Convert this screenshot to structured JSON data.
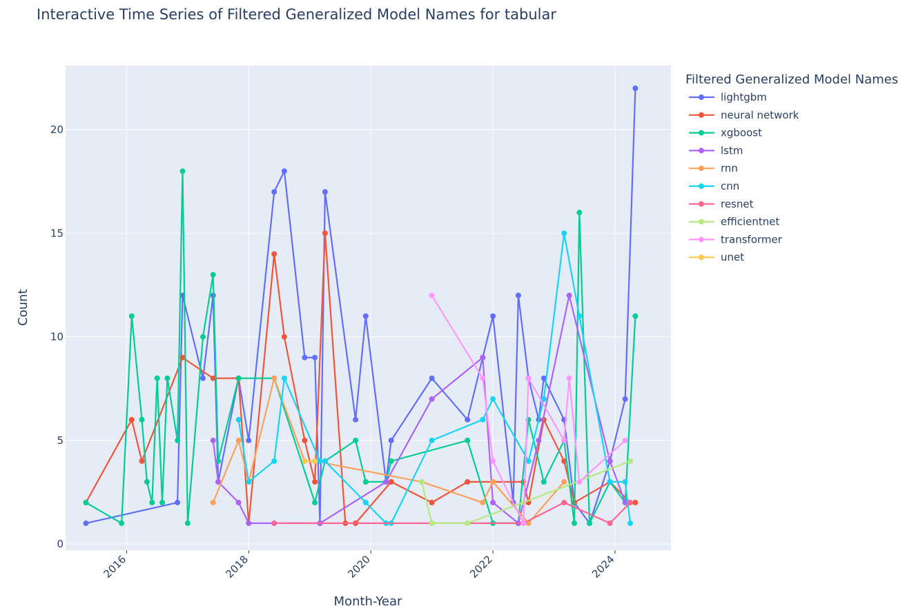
{
  "chart_data": {
    "type": "line",
    "title": "Interactive Time Series of Filtered Generalized Model Names for tabular",
    "xlabel": "Month-Year",
    "ylabel": "Count",
    "legend_title": "Filtered Generalized Model Names",
    "legend_position": "right",
    "grid": true,
    "xlim": [
      "2015-01",
      "2024-12"
    ],
    "ylim": [
      -0.3,
      23.1
    ],
    "x_ticks": [
      "2016",
      "2018",
      "2020",
      "2022",
      "2024"
    ],
    "y_ticks": [
      "0",
      "5",
      "10",
      "15",
      "20"
    ],
    "background": "#e5ecf6",
    "series": [
      {
        "name": "lightgbm",
        "color": "#636efa",
        "x": [
          "2015-05",
          "2016-11",
          "2016-12",
          "2017-04",
          "2017-06",
          "2017-07",
          "2017-11",
          "2018-01",
          "2018-06",
          "2018-08",
          "2018-12",
          "2019-02",
          "2019-03",
          "2019-04",
          "2019-10",
          "2019-12",
          "2020-04",
          "2020-05",
          "2021-01",
          "2021-08",
          "2021-11",
          "2022-01",
          "2022-05",
          "2022-06",
          "2022-08",
          "2022-10",
          "2022-11",
          "2023-03",
          "2023-05",
          "2023-08",
          "2023-12",
          "2024-03",
          "2024-05"
        ],
        "y": [
          1,
          2,
          12,
          8,
          12,
          3,
          8,
          5,
          17,
          18,
          9,
          9,
          1,
          17,
          6,
          11,
          3,
          5,
          8,
          6,
          9,
          11,
          2,
          12,
          8,
          6,
          8,
          6,
          2,
          1,
          4,
          7,
          22
        ]
      },
      {
        "name": "neural network",
        "color": "#ef553b",
        "x": [
          "2015-05",
          "2016-02",
          "2016-04",
          "2016-12",
          "2017-06",
          "2017-11",
          "2018-01",
          "2018-06",
          "2018-08",
          "2018-12",
          "2019-02",
          "2019-04",
          "2019-08",
          "2019-10",
          "2020-05",
          "2021-01",
          "2021-08",
          "2022-01",
          "2022-07",
          "2022-08",
          "2022-11",
          "2023-03",
          "2023-05",
          "2023-12",
          "2024-04",
          "2024-05"
        ],
        "y": [
          2,
          6,
          4,
          9,
          8,
          8,
          1,
          14,
          10,
          5,
          3,
          15,
          1,
          1,
          3,
          2,
          3,
          3,
          3,
          2,
          6,
          4,
          2,
          3,
          2,
          2
        ]
      },
      {
        "name": "xgboost",
        "color": "#00cc96",
        "x": [
          "2015-05",
          "2015-12",
          "2016-02",
          "2016-04",
          "2016-05",
          "2016-06",
          "2016-07",
          "2016-08",
          "2016-09",
          "2016-11",
          "2016-12",
          "2017-01",
          "2017-04",
          "2017-06",
          "2017-07",
          "2017-11",
          "2018-06",
          "2019-02",
          "2019-04",
          "2019-10",
          "2019-12",
          "2020-04",
          "2020-05",
          "2021-08",
          "2022-01",
          "2022-06",
          "2022-08",
          "2022-11",
          "2023-03",
          "2023-05",
          "2023-06",
          "2023-08",
          "2023-12",
          "2024-03",
          "2024-05"
        ],
        "y": [
          2,
          1,
          11,
          6,
          3,
          2,
          8,
          2,
          8,
          5,
          18,
          1,
          10,
          13,
          4,
          8,
          8,
          2,
          4,
          5,
          3,
          3,
          4,
          5,
          1,
          1,
          6,
          3,
          5,
          1,
          16,
          1,
          3,
          2,
          11
        ]
      },
      {
        "name": "lstm",
        "color": "#ab63fa",
        "x": [
          "2017-06",
          "2017-07",
          "2017-11",
          "2018-01",
          "2018-06",
          "2019-03",
          "2020-04",
          "2021-01",
          "2021-11",
          "2022-01",
          "2022-06",
          "2022-10",
          "2023-04",
          "2023-12",
          "2024-03"
        ],
        "y": [
          5,
          3,
          2,
          1,
          1,
          1,
          3,
          7,
          9,
          2,
          1,
          5,
          12,
          4,
          2
        ]
      },
      {
        "name": "rnn",
        "color": "#ffa15a",
        "x": [
          "2017-06",
          "2017-11",
          "2018-01",
          "2018-06",
          "2018-12",
          "2019-02",
          "2020-11",
          "2021-11",
          "2022-01",
          "2022-08",
          "2023-03"
        ],
        "y": [
          2,
          5,
          3,
          8,
          4,
          4,
          3,
          2,
          3,
          1,
          3
        ]
      },
      {
        "name": "cnn",
        "color": "#19d3f3",
        "x": [
          "2017-11",
          "2018-01",
          "2018-06",
          "2018-08",
          "2019-03",
          "2019-04",
          "2019-12",
          "2020-04",
          "2020-05",
          "2021-01",
          "2021-11",
          "2022-01",
          "2022-08",
          "2022-11",
          "2023-03",
          "2023-06",
          "2023-12",
          "2024-03",
          "2024-04"
        ],
        "y": [
          6,
          3,
          4,
          8,
          4,
          4,
          2,
          1,
          1,
          5,
          6,
          7,
          4,
          7,
          15,
          11,
          3,
          3,
          1
        ]
      },
      {
        "name": "resnet",
        "color": "#ff6692",
        "x": [
          "2018-06",
          "2021-01",
          "2022-07",
          "2023-03",
          "2023-12",
          "2024-04"
        ],
        "y": [
          1,
          1,
          1,
          2,
          1,
          2
        ]
      },
      {
        "name": "efficientnet",
        "color": "#b6e880",
        "x": [
          "2020-11",
          "2021-01",
          "2021-08",
          "2022-07",
          "2024-04"
        ],
        "y": [
          3,
          1,
          1,
          2,
          4
        ]
      },
      {
        "name": "transformer",
        "color": "#ff97ff",
        "x": [
          "2021-01",
          "2021-11",
          "2022-01",
          "2022-07",
          "2022-08",
          "2023-03",
          "2023-04",
          "2023-06",
          "2024-03"
        ],
        "y": [
          12,
          8,
          4,
          1,
          8,
          5,
          8,
          3,
          5
        ]
      },
      {
        "name": "unet",
        "color": "#fecb52",
        "x": [
          "2018-12",
          "2019-02"
        ],
        "y": [
          4,
          4
        ]
      }
    ]
  }
}
